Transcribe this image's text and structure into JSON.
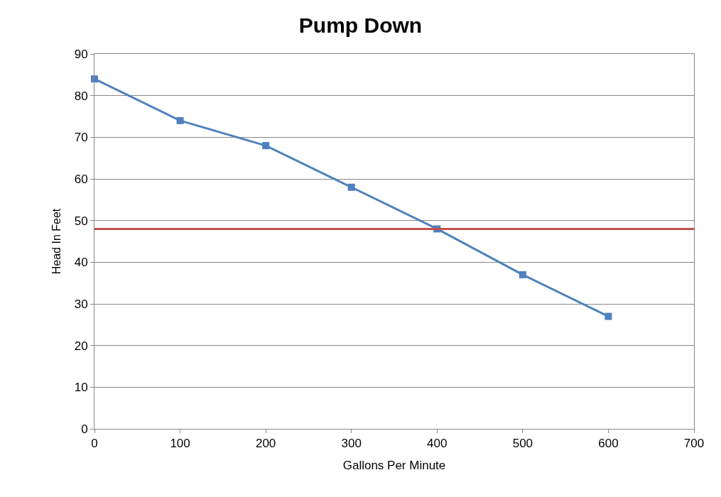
{
  "chart_data": {
    "type": "line",
    "title": "Pump Down",
    "xlabel": "Gallons Per Minute",
    "ylabel": "Head In Feet",
    "x": [
      0,
      100,
      200,
      300,
      400,
      500,
      600
    ],
    "series": [
      {
        "color": "#4f81bd",
        "values": [
          84,
          74,
          68,
          58,
          48,
          37,
          27
        ]
      }
    ],
    "xlim": [
      0,
      700
    ],
    "xticks": [
      0,
      100,
      200,
      300,
      400,
      500,
      600,
      700
    ],
    "ylim": [
      0,
      90
    ],
    "yticks": [
      0,
      10,
      20,
      30,
      40,
      50,
      60,
      70,
      80,
      90
    ],
    "ref_lines": [
      {
        "axis": "y",
        "value": 48,
        "color": "#c0504d"
      }
    ],
    "grid": "y",
    "marker": "square",
    "line_style": "solid",
    "legend": false
  }
}
